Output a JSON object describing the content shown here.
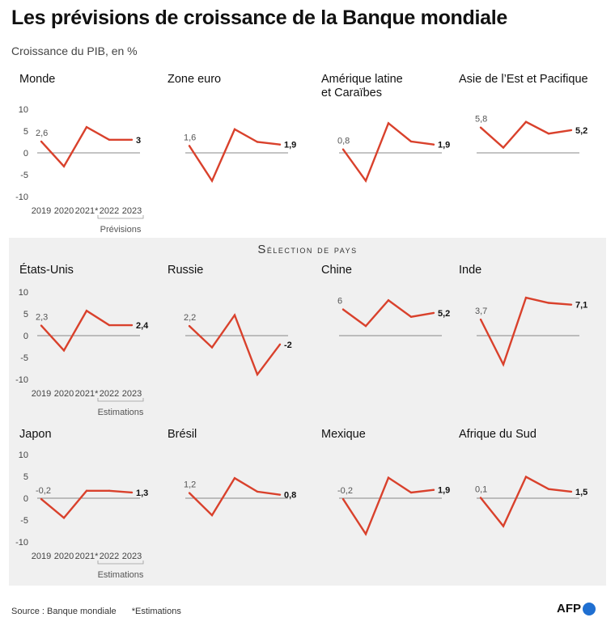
{
  "title": "Les prévisions de croissance de la Banque mondiale",
  "subtitle": "Croissance du PIB, en %",
  "section_label": "Sélection de pays",
  "source": "Source : Banque mondiale",
  "footnote": "*Estimations",
  "logo": "AFP",
  "colors": {
    "line": "#d9412c",
    "axis": "#888888",
    "band": "#f0f0f0",
    "logo_dot": "#1f6fd1"
  },
  "chart_data": [
    {
      "type": "line",
      "title": "Monde",
      "x": [
        "2019",
        "2020",
        "2021*",
        "2022",
        "2023"
      ],
      "values": [
        2.6,
        -3.1,
        5.9,
        3.0,
        3.0
      ],
      "labels": {
        "first": "2,6",
        "last": "3"
      },
      "ylim": [
        -10,
        10
      ],
      "yticks": [
        "10",
        "5",
        "0",
        "-5",
        "-10"
      ],
      "show_axis": true,
      "note": "Prévisions"
    },
    {
      "type": "line",
      "title": "Zone euro",
      "x": [
        "2019",
        "2020",
        "2021*",
        "2022",
        "2023"
      ],
      "values": [
        1.6,
        -6.4,
        5.4,
        2.5,
        1.9
      ],
      "labels": {
        "first": "1,6",
        "last": "1,9"
      },
      "ylim": [
        -10,
        10
      ],
      "show_axis": false
    },
    {
      "type": "line",
      "title": "Amérique latine et Caraïbes",
      "x": [
        "2019",
        "2020",
        "2021*",
        "2022",
        "2023"
      ],
      "values": [
        0.8,
        -6.4,
        6.8,
        2.6,
        1.9
      ],
      "labels": {
        "first": "0,8",
        "last": "1,9"
      },
      "ylim": [
        -10,
        10
      ],
      "show_axis": false
    },
    {
      "type": "line",
      "title": "Asie de l’Est et Pacifique",
      "x": [
        "2019",
        "2020",
        "2021*",
        "2022",
        "2023"
      ],
      "values": [
        5.8,
        1.2,
        7.1,
        4.4,
        5.2
      ],
      "labels": {
        "first": "5,8",
        "last": "5,2"
      },
      "ylim": [
        -10,
        10
      ],
      "show_axis": false
    },
    {
      "type": "line",
      "title": "États-Unis",
      "x": [
        "2019",
        "2020",
        "2021*",
        "2022",
        "2023"
      ],
      "values": [
        2.3,
        -3.4,
        5.7,
        2.4,
        2.4
      ],
      "labels": {
        "first": "2,3",
        "last": "2,4"
      },
      "ylim": [
        -10,
        10
      ],
      "yticks": [
        "10",
        "5",
        "0",
        "-5",
        "-10"
      ],
      "show_axis": true,
      "note": "Estimations"
    },
    {
      "type": "line",
      "title": "Russie",
      "x": [
        "2019",
        "2020",
        "2021*",
        "2022",
        "2023"
      ],
      "values": [
        2.2,
        -2.7,
        4.7,
        -8.9,
        -2.0
      ],
      "labels": {
        "first": "2,2",
        "last": "-2"
      },
      "ylim": [
        -10,
        10
      ],
      "show_axis": false
    },
    {
      "type": "line",
      "title": "Chine",
      "x": [
        "2019",
        "2020",
        "2021*",
        "2022",
        "2023"
      ],
      "values": [
        6.0,
        2.2,
        8.1,
        4.3,
        5.2
      ],
      "labels": {
        "first": "6",
        "last": "5,2"
      },
      "ylim": [
        -10,
        10
      ],
      "show_axis": false
    },
    {
      "type": "line",
      "title": "Inde",
      "x": [
        "2019",
        "2020",
        "2021*",
        "2022",
        "2023"
      ],
      "values": [
        3.7,
        -6.6,
        8.7,
        7.5,
        7.1
      ],
      "labels": {
        "first": "3,7",
        "last": "7,1"
      },
      "ylim": [
        -10,
        10
      ],
      "show_axis": false
    },
    {
      "type": "line",
      "title": "Japon",
      "x": [
        "2019",
        "2020",
        "2021*",
        "2022",
        "2023"
      ],
      "values": [
        -0.2,
        -4.5,
        1.7,
        1.7,
        1.3
      ],
      "labels": {
        "first": "-0,2",
        "last": "1,3"
      },
      "ylim": [
        -10,
        10
      ],
      "yticks": [
        "10",
        "5",
        "0",
        "-5",
        "-10"
      ],
      "show_axis": true,
      "note": "Estimations"
    },
    {
      "type": "line",
      "title": "Brésil",
      "x": [
        "2019",
        "2020",
        "2021*",
        "2022",
        "2023"
      ],
      "values": [
        1.2,
        -3.9,
        4.6,
        1.5,
        0.8
      ],
      "labels": {
        "first": "1,2",
        "last": "0,8"
      },
      "ylim": [
        -10,
        10
      ],
      "show_axis": false
    },
    {
      "type": "line",
      "title": "Mexique",
      "x": [
        "2019",
        "2020",
        "2021*",
        "2022",
        "2023"
      ],
      "values": [
        -0.2,
        -8.2,
        4.7,
        1.3,
        1.9
      ],
      "labels": {
        "first": "-0,2",
        "last": "1,9"
      },
      "ylim": [
        -10,
        10
      ],
      "show_axis": false
    },
    {
      "type": "line",
      "title": "Afrique du Sud",
      "x": [
        "2019",
        "2020",
        "2021*",
        "2022",
        "2023"
      ],
      "values": [
        0.1,
        -6.4,
        4.9,
        2.1,
        1.5
      ],
      "labels": {
        "first": "0,1",
        "last": "1,5"
      },
      "ylim": [
        -10,
        10
      ],
      "show_axis": false
    }
  ]
}
